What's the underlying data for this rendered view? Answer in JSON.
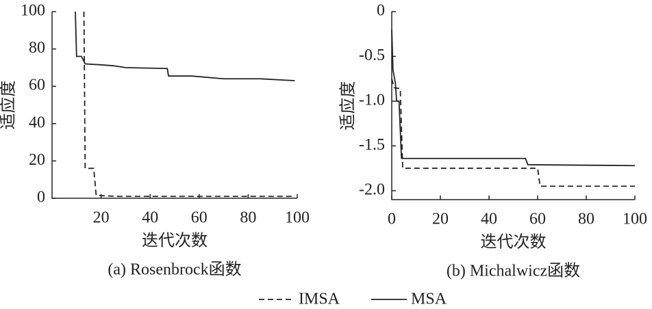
{
  "chart_data": [
    {
      "type": "line",
      "caption": "(a) Rosenbrock函数",
      "xlabel": "迭代次数",
      "ylabel": "适应度",
      "xlim": [
        0,
        100
      ],
      "ylim": [
        0,
        100
      ],
      "xticks": [
        20,
        40,
        60,
        80,
        100
      ],
      "yticks": [
        0,
        20,
        40,
        60,
        80,
        100
      ],
      "series": [
        {
          "name": "IMSA",
          "color": "#222222",
          "style": "dashed",
          "x": [
            13,
            13.5,
            17,
            18,
            27,
            99
          ],
          "values": [
            100,
            16,
            16,
            1.5,
            1,
            1
          ]
        },
        {
          "name": "MSA",
          "color": "#222222",
          "style": "solid",
          "x": [
            9.5,
            10,
            12,
            13.5,
            20,
            25,
            30,
            47,
            47.5,
            57,
            70,
            85,
            99
          ],
          "values": [
            100,
            76,
            76,
            72,
            71.5,
            71,
            70,
            69.5,
            65.5,
            65.5,
            64,
            64,
            63
          ]
        }
      ]
    },
    {
      "type": "line",
      "caption": "(b) Michalwicz函数",
      "xlabel": "迭代次数",
      "ylabel": "适应度",
      "xlim": [
        0,
        100
      ],
      "ylim": [
        -2.1,
        0
      ],
      "xticks": [
        0,
        20,
        40,
        60,
        80,
        100
      ],
      "yticks": [
        0,
        -0.5,
        {
          "value": -1,
          "label": "-1.0"
        },
        -1.5,
        {
          "value": -2,
          "label": "-2.0"
        }
      ],
      "series": [
        {
          "name": "IMSA",
          "color": "#222222",
          "style": "dashed",
          "x": [
            0,
            1,
            3.5,
            4.5,
            60,
            61,
            100
          ],
          "values": [
            -0.75,
            -0.85,
            -0.86,
            -1.75,
            -1.75,
            -1.95,
            -1.95
          ]
        },
        {
          "name": "MSA",
          "color": "#222222",
          "style": "solid",
          "x": [
            0,
            0.5,
            1.5,
            2,
            3,
            4,
            55,
            56,
            100
          ],
          "values": [
            -0.2,
            -0.65,
            -0.8,
            -1,
            -1,
            -1.64,
            -1.64,
            -1.71,
            -1.72
          ]
        }
      ]
    }
  ]
}
